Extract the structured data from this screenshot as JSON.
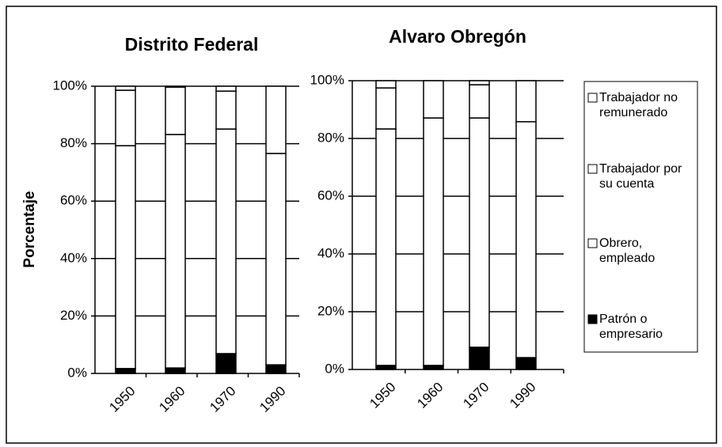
{
  "chart_data": [
    {
      "type": "bar",
      "stacked": true,
      "title": "Distrito Federal",
      "ylabel": "Porcentaje",
      "categories": [
        "1950",
        "1960",
        "1970",
        "1990"
      ],
      "ylim": [
        0,
        100
      ],
      "yticks": [
        {
          "value": 0,
          "label": "0%"
        },
        {
          "value": 20,
          "label": "20%"
        },
        {
          "value": 40,
          "label": "40%"
        },
        {
          "value": 60,
          "label": "60%"
        },
        {
          "value": 80,
          "label": "80%"
        },
        {
          "value": 100,
          "label": "100%"
        }
      ],
      "grid": true,
      "series": [
        {
          "name": "Patrón o empresario",
          "color": "#000000",
          "values": [
            1.7,
            1.9,
            6.9,
            3.0
          ]
        },
        {
          "name": "Obrero, empleado",
          "color": "#ffffff",
          "values": [
            77.6,
            81.3,
            78.2,
            73.6
          ]
        },
        {
          "name": "Trabajador por su cuenta",
          "color": "#ffffff",
          "values": [
            19.3,
            16.5,
            13.2,
            23.4
          ]
        },
        {
          "name": "Trabajador no remunerado",
          "color": "#ffffff",
          "values": [
            1.4,
            0.3,
            1.7,
            0
          ]
        }
      ]
    },
    {
      "type": "bar",
      "stacked": true,
      "title": "Alvaro Obregón",
      "categories": [
        "1950",
        "1960",
        "1970",
        "1990"
      ],
      "ylim": [
        0,
        100
      ],
      "yticks": [
        {
          "value": 0,
          "label": "0%"
        },
        {
          "value": 20,
          "label": "20%"
        },
        {
          "value": 40,
          "label": "40%"
        },
        {
          "value": 60,
          "label": "60%"
        },
        {
          "value": 80,
          "label": "80%"
        },
        {
          "value": 100,
          "label": "100%"
        }
      ],
      "grid": true,
      "series": [
        {
          "name": "Patrón o empresario",
          "color": "#000000",
          "values": [
            1.4,
            1.4,
            7.7,
            4.1
          ]
        },
        {
          "name": "Obrero, empleado",
          "color": "#ffffff",
          "values": [
            81.9,
            85.7,
            79.4,
            81.7
          ]
        },
        {
          "name": "Trabajador por su cuenta",
          "color": "#ffffff",
          "values": [
            14.2,
            12.9,
            11.5,
            14.2
          ]
        },
        {
          "name": "Trabajador no remunerado",
          "color": "#ffffff",
          "values": [
            2.5,
            0,
            1.4,
            0
          ]
        }
      ]
    }
  ]
}
